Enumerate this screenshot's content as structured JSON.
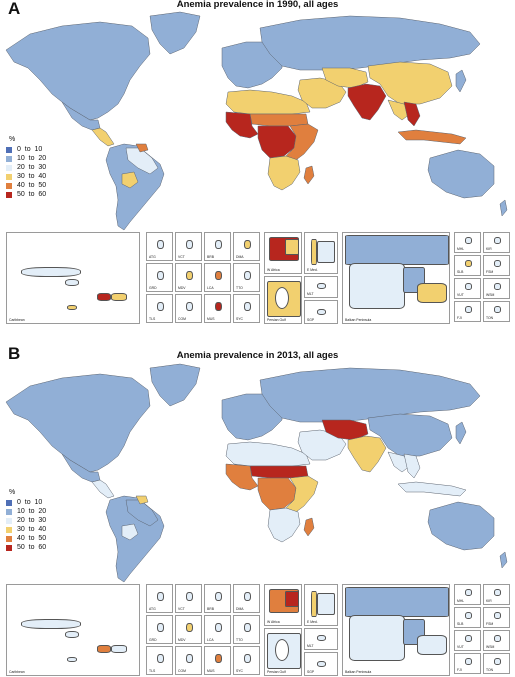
{
  "colors": {
    "c0_10": "#4f6fb6",
    "c10_20": "#91afd6",
    "c20_30": "#e3eef8",
    "c30_40": "#f2d06f",
    "c40_50": "#e07f3e",
    "c50_60": "#b7261e",
    "border": "#5c6470"
  },
  "legend": {
    "unit": "%",
    "items": [
      {
        "label": "0  to  10",
        "color": "#4f6fb6"
      },
      {
        "label": "10  to  20",
        "color": "#91afd6"
      },
      {
        "label": "20  to  30",
        "color": "#e3eef8"
      },
      {
        "label": "30  to  40",
        "color": "#f2d06f"
      },
      {
        "label": "40  to  50",
        "color": "#e07f3e"
      },
      {
        "label": "50  to  60",
        "color": "#b7261e"
      }
    ]
  },
  "panels": [
    {
      "letter": "A",
      "title": "Anemia prevalence in 1990, all ages",
      "regions": {
        "north_america": "#91afd6",
        "greenland": "#91afd6",
        "mexico": "#91afd6",
        "central_america": "#f2d06f",
        "south_america": "#91afd6",
        "brazil_north": "#e3eef8",
        "bolivia": "#f2d06f",
        "guyana": "#e07f3e",
        "europe": "#91afd6",
        "russia": "#91afd6",
        "north_africa": "#f2d06f",
        "west_africa": "#b7261e",
        "sahel": "#e07f3e",
        "central_africa": "#b7261e",
        "east_africa": "#e07f3e",
        "southern_africa": "#f2d06f",
        "madagascar": "#e07f3e",
        "middle_east": "#f2d06f",
        "central_asia": "#f2d06f",
        "south_asia": "#b7261e",
        "china": "#f2d06f",
        "southeast_asia": "#f2d06f",
        "indochina": "#b7261e",
        "indonesia": "#e07f3e",
        "australia": "#91afd6",
        "japan": "#91afd6"
      },
      "insets": {
        "caribbean": "Caribbean",
        "codes": [
          "ATG",
          "VCT",
          "BRB",
          "DMA",
          "GRD",
          "MDV",
          "LCA",
          "TTO",
          "TLS",
          "COM",
          "MUS",
          "SYC"
        ],
        "w_africa": "W Africa",
        "e_med": "E Med.",
        "malta": "MLT",
        "persian_gulf": "Persian Gulf",
        "singapore": "SGP",
        "balkan": "Balkan Peninsula",
        "oceania": [
          "MHL",
          "KIR",
          "SLB",
          "FSM",
          "VUT",
          "WSM",
          "FJI",
          "TON"
        ]
      }
    },
    {
      "letter": "B",
      "title": "Anemia prevalence in 2013, all ages",
      "regions": {
        "north_america": "#91afd6",
        "greenland": "#91afd6",
        "mexico": "#91afd6",
        "central_america": "#e3eef8",
        "south_america": "#91afd6",
        "brazil_north": "#91afd6",
        "bolivia": "#e3eef8",
        "guyana": "#f2d06f",
        "europe": "#91afd6",
        "russia": "#91afd6",
        "north_africa": "#e3eef8",
        "west_africa": "#e07f3e",
        "sahel": "#b7261e",
        "central_africa": "#e07f3e",
        "east_africa": "#f2d06f",
        "southern_africa": "#e3eef8",
        "madagascar": "#e07f3e",
        "middle_east": "#e3eef8",
        "central_asia": "#b7261e",
        "south_asia": "#f2d06f",
        "china": "#91afd6",
        "southeast_asia": "#e3eef8",
        "indochina": "#e3eef8",
        "indonesia": "#e3eef8",
        "australia": "#91afd6",
        "japan": "#91afd6"
      },
      "insets": {
        "caribbean": "Caribbean",
        "codes": [
          "ATG",
          "VCT",
          "BRB",
          "DMA",
          "GRD",
          "MDV",
          "LCA",
          "TTO",
          "TLS",
          "COM",
          "MUS",
          "SYC"
        ],
        "w_africa": "W Africa",
        "e_med": "E Med.",
        "malta": "MLT",
        "persian_gulf": "Persian Gulf",
        "singapore": "SGP",
        "balkan": "Balkan Peninsula",
        "oceania": [
          "MHL",
          "KIR",
          "SLB",
          "FSM",
          "VUT",
          "WSM",
          "FJI",
          "TON"
        ]
      }
    }
  ]
}
